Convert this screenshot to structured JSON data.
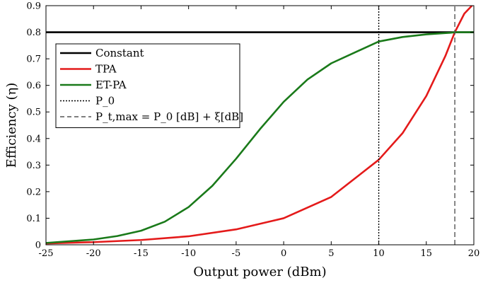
{
  "chart_data": {
    "type": "line",
    "title": "",
    "xlabel": "Output power (dBm)",
    "ylabel": "Efficiency (η)",
    "xlim": [
      -25,
      20
    ],
    "ylim": [
      0,
      0.9
    ],
    "xticks": [
      -25,
      -20,
      -15,
      -10,
      -5,
      0,
      5,
      10,
      15,
      20
    ],
    "yticks": [
      0,
      0.1,
      0.2,
      0.3,
      0.4,
      0.5,
      0.6,
      0.7,
      0.8,
      0.9
    ],
    "xtick_labels": [
      "-25",
      "-20",
      "-15",
      "-10",
      "-5",
      "0",
      "5",
      "10",
      "15",
      "20"
    ],
    "ytick_labels": [
      "0",
      "0.1",
      "0.2",
      "0.3",
      "0.4",
      "0.5",
      "0.6",
      "0.7",
      "0.8",
      "0.9"
    ],
    "grid": false,
    "legend_position": "upper-left",
    "series": [
      {
        "name": "Constant",
        "color": "#000000",
        "style": "solid",
        "x": [
          -25,
          20
        ],
        "y": [
          0.8,
          0.8
        ]
      },
      {
        "name": "TPA",
        "color": "#e41a1a",
        "style": "solid",
        "x": [
          -25,
          -20,
          -15,
          -10,
          -5,
          0,
          5,
          10,
          12.5,
          15,
          17,
          18,
          19,
          19.8
        ],
        "y": [
          0.005,
          0.01,
          0.018,
          0.032,
          0.058,
          0.1,
          0.18,
          0.32,
          0.42,
          0.56,
          0.71,
          0.8,
          0.87,
          0.9
        ]
      },
      {
        "name": "ET-PA",
        "color": "#1a7a1a",
        "style": "solid",
        "x": [
          -25,
          -20,
          -17.5,
          -15,
          -12.5,
          -10,
          -7.5,
          -5,
          -2.5,
          0,
          2.5,
          5,
          7.5,
          10,
          12.5,
          15,
          17.5,
          18,
          20
        ],
        "y": [
          0.007,
          0.02,
          0.033,
          0.053,
          0.087,
          0.142,
          0.222,
          0.324,
          0.435,
          0.538,
          0.622,
          0.683,
          0.724,
          0.765,
          0.782,
          0.792,
          0.798,
          0.8,
          0.8
        ]
      },
      {
        "name": "P_0",
        "color": "#000000",
        "style": "dotted",
        "x": [
          10,
          10
        ],
        "y": [
          0,
          0.9
        ]
      },
      {
        "name": "P_t,max = P_0 [dB] + ξ[dB]",
        "color": "#555555",
        "style": "dashed",
        "x": [
          18,
          18
        ],
        "y": [
          0,
          0.9
        ]
      }
    ]
  },
  "legend": {
    "items": [
      {
        "label": "Constant",
        "color": "#000000",
        "dash": "none"
      },
      {
        "label": "TPA",
        "color": "#e41a1a",
        "dash": "none"
      },
      {
        "label": "ET-PA",
        "color": "#1a7a1a",
        "dash": "none"
      },
      {
        "label": "P_0",
        "color": "#000000",
        "dash": "dotted"
      },
      {
        "label": "P_t,max = P_0 [dB] + ξ[dB]",
        "color": "#555555",
        "dash": "dashed"
      }
    ]
  }
}
